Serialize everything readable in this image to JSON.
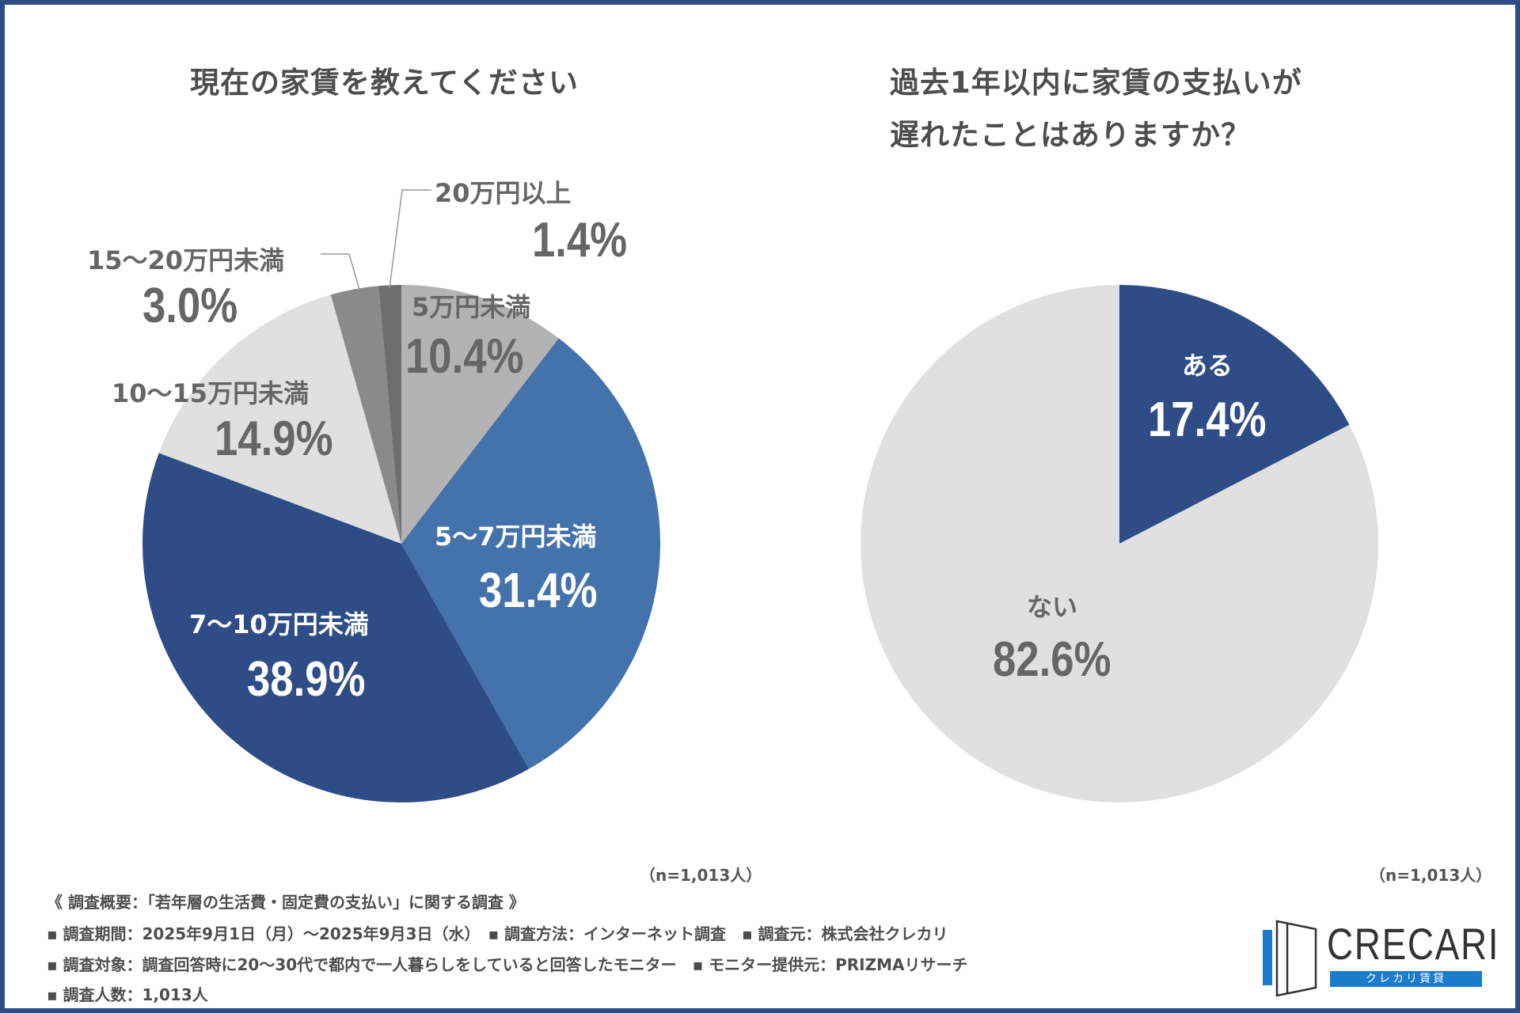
{
  "chart_data": [
    {
      "type": "pie",
      "title": "現在の家賃を教えてください",
      "start": "top",
      "direction": "clockwise",
      "slices": [
        {
          "label": "5万円未満",
          "value": 10.4,
          "display": "10.4%",
          "color": "#b3b3b3"
        },
        {
          "label": "5〜7万円未満",
          "value": 31.4,
          "display": "31.4%",
          "color": "#4472ab"
        },
        {
          "label": "7〜10万円未満",
          "value": 38.9,
          "display": "38.9%",
          "color": "#2e4c86"
        },
        {
          "label": "10〜15万円未満",
          "value": 14.9,
          "display": "14.9%",
          "color": "#e0e0e0"
        },
        {
          "label": "15〜20万円未満",
          "value": 3.0,
          "display": "3.0%",
          "color": "#8a8a8a"
        },
        {
          "label": "20万円以上",
          "value": 1.4,
          "display": "1.4%",
          "color": "#6e6e6e"
        }
      ],
      "sample_note": "（n=1,013人）"
    },
    {
      "type": "pie",
      "title_lines": [
        "過去1年以内に家賃の支払いが",
        "遅れたことはありますか？"
      ],
      "start": "top",
      "direction": "clockwise",
      "slices": [
        {
          "label": "ある",
          "value": 17.4,
          "display": "17.4%",
          "color": "#2e4c86"
        },
        {
          "label": "ない",
          "value": 82.6,
          "display": "82.6%",
          "color": "#e0e0e0"
        }
      ],
      "sample_note": "（n=1,013人）"
    }
  ],
  "footer": {
    "heading": "《 調査概要：「若年層の生活費・固定費の支払い」に関する調査 》",
    "line1": "▪ 調査期間：2025年9月1日（月）〜2025年9月3日（水）　▪ 調査方法：インターネット調査　▪ 調査元：株式会社クレカリ",
    "line2": "▪ 調査対象：調査回答時に20〜30代で都内で一人暮らしをしていると回答したモニター　▪ モニター提供元：PRIZMAリサーチ",
    "line3": "▪ 調査人数：1,013人"
  },
  "logo": {
    "name": "CRECARI",
    "sub": "クレカリ賃貸",
    "accent": "#1b7ccc"
  },
  "frame_color": "#2e4c86"
}
